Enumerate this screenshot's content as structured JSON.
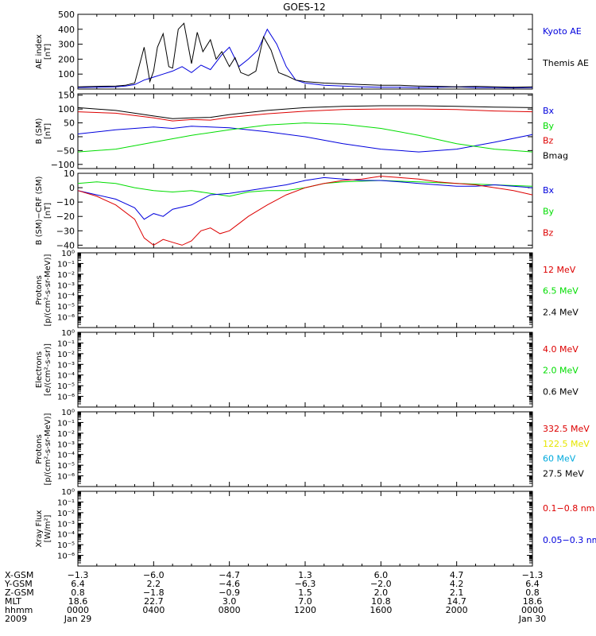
{
  "title": "GOES-12",
  "colors": {
    "black": "#000000",
    "blue": "#0000dd",
    "red": "#dd0000",
    "green": "#00dd00",
    "yellow": "#e6e600",
    "cyan": "#00aadd"
  },
  "chart_data": [
    {
      "type": "line",
      "id": "ae",
      "ylabel": [
        "AE index",
        "[nT]"
      ],
      "ylim": [
        0,
        500
      ],
      "yticks": [
        0,
        100,
        200,
        300,
        400,
        500
      ],
      "tick_labels": [
        "0",
        "100",
        "200",
        "300",
        "400",
        "500"
      ],
      "legend": [
        {
          "label": "Kyoto AE",
          "color": "blue"
        },
        {
          "label": "Themis AE",
          "color": "black"
        }
      ],
      "series": [
        {
          "name": "Kyoto AE",
          "color": "blue",
          "x": [
            0,
            1,
            2,
            2.5,
            3,
            3.5,
            4,
            4.5,
            5,
            5.5,
            6,
            6.5,
            7,
            7.3,
            7.6,
            8,
            8.5,
            9,
            9.5,
            10,
            10.5,
            11,
            11.5,
            12,
            13,
            14,
            15,
            16,
            17,
            18,
            19,
            20,
            21,
            22,
            23,
            24
          ],
          "y": [
            10,
            12,
            15,
            20,
            30,
            60,
            80,
            100,
            120,
            150,
            110,
            160,
            130,
            180,
            230,
            280,
            150,
            200,
            260,
            400,
            300,
            150,
            60,
            40,
            25,
            20,
            15,
            12,
            12,
            10,
            12,
            15,
            10,
            10,
            8,
            10
          ]
        },
        {
          "name": "Themis AE",
          "color": "black",
          "x": [
            0,
            1,
            2,
            2.5,
            3,
            3.5,
            3.8,
            4.0,
            4.2,
            4.5,
            4.8,
            5.0,
            5.3,
            5.6,
            6,
            6.3,
            6.6,
            7,
            7.3,
            7.6,
            8,
            8.3,
            8.6,
            9,
            9.4,
            9.8,
            10.2,
            10.6,
            11,
            11.5,
            12,
            13,
            14,
            15,
            16,
            17,
            18,
            19,
            20,
            21,
            22,
            23,
            24
          ],
          "y": [
            15,
            18,
            20,
            25,
            40,
            280,
            50,
            120,
            280,
            370,
            150,
            140,
            400,
            440,
            170,
            380,
            250,
            330,
            200,
            250,
            150,
            210,
            110,
            90,
            120,
            350,
            260,
            110,
            90,
            60,
            50,
            40,
            35,
            30,
            25,
            25,
            20,
            18,
            15,
            18,
            15,
            12,
            15
          ]
        }
      ]
    },
    {
      "type": "line",
      "id": "bsm",
      "ylabel": [
        "B (SM)",
        "[nT]"
      ],
      "ylim": [
        -115,
        155
      ],
      "yticks": [
        -100,
        -50,
        0,
        50,
        100,
        150
      ],
      "tick_labels": [
        "−100",
        "−50",
        "0",
        "50",
        "100",
        "150"
      ],
      "legend": [
        {
          "label": "Bx",
          "color": "blue"
        },
        {
          "label": "By",
          "color": "green"
        },
        {
          "label": "Bz",
          "color": "red"
        },
        {
          "label": "Bmag",
          "color": "black"
        }
      ],
      "series": [
        {
          "name": "Bmag",
          "color": "black",
          "x": [
            0,
            2,
            4,
            5,
            6,
            7,
            8,
            10,
            12,
            14,
            16,
            18,
            20,
            22,
            24
          ],
          "y": [
            105,
            95,
            75,
            65,
            68,
            70,
            80,
            95,
            105,
            110,
            112,
            112,
            110,
            107,
            105
          ]
        },
        {
          "name": "Bz",
          "color": "red",
          "x": [
            0,
            2,
            4,
            5,
            6,
            7,
            8,
            10,
            12,
            14,
            16,
            18,
            20,
            22,
            24
          ],
          "y": [
            90,
            85,
            68,
            57,
            62,
            60,
            70,
            83,
            92,
            98,
            100,
            100,
            98,
            93,
            90
          ]
        },
        {
          "name": "Bx",
          "color": "blue",
          "x": [
            0,
            2,
            4,
            5,
            6,
            7,
            8,
            10,
            12,
            14,
            16,
            18,
            20,
            22,
            24
          ],
          "y": [
            10,
            25,
            35,
            30,
            38,
            35,
            32,
            18,
            0,
            -25,
            -45,
            -55,
            -45,
            -20,
            8
          ]
        },
        {
          "name": "By",
          "color": "green",
          "x": [
            0,
            2,
            4,
            6,
            8,
            10,
            12,
            14,
            16,
            18,
            20,
            22,
            24
          ],
          "y": [
            -55,
            -45,
            -20,
            5,
            25,
            42,
            50,
            45,
            30,
            5,
            -25,
            -45,
            -55
          ]
        }
      ]
    },
    {
      "type": "line",
      "id": "bdiff",
      "ylabel": [
        "B (SM)−CRF (SM)",
        "[nT]"
      ],
      "ylim": [
        -42,
        10
      ],
      "yticks": [
        -40,
        -30,
        -20,
        -10,
        0,
        10
      ],
      "tick_labels": [
        "−40",
        "−30",
        "−20",
        "−10",
        "0",
        "10"
      ],
      "legend": [
        {
          "label": "Bx",
          "color": "blue"
        },
        {
          "label": "By",
          "color": "green"
        },
        {
          "label": "Bz",
          "color": "red"
        }
      ],
      "series": [
        {
          "name": "By",
          "color": "green",
          "x": [
            0,
            1,
            2,
            3,
            4,
            5,
            6,
            7,
            8,
            9,
            10,
            11,
            12,
            13,
            14,
            16,
            18,
            20,
            22,
            24
          ],
          "y": [
            3,
            4,
            3,
            0,
            -2,
            -3,
            -2,
            -4,
            -6,
            -3,
            -2,
            -2,
            0,
            3,
            4,
            5,
            4,
            3,
            2,
            1
          ]
        },
        {
          "name": "Bx",
          "color": "blue",
          "x": [
            0,
            1,
            2,
            3,
            3.5,
            4,
            4.5,
            5,
            6,
            7,
            8,
            9,
            10,
            11,
            12,
            13,
            14,
            15,
            16,
            17,
            18,
            19,
            20,
            21,
            22,
            23,
            24
          ],
          "y": [
            -2,
            -5,
            -8,
            -14,
            -22,
            -18,
            -20,
            -15,
            -12,
            -5,
            -4,
            -2,
            0,
            2,
            5,
            7,
            6,
            5,
            5,
            4,
            3,
            2,
            1,
            1,
            2,
            1,
            0
          ]
        },
        {
          "name": "Bz",
          "color": "red",
          "x": [
            0,
            1,
            2,
            3,
            3.5,
            4,
            4.5,
            5,
            5.5,
            6,
            6.5,
            7,
            7.5,
            8,
            8.5,
            9,
            10,
            11,
            12,
            13,
            14,
            15,
            16,
            17,
            18,
            19,
            20,
            21,
            22,
            23,
            24
          ],
          "y": [
            -2,
            -6,
            -12,
            -22,
            -35,
            -40,
            -36,
            -38,
            -40,
            -37,
            -30,
            -28,
            -32,
            -30,
            -25,
            -20,
            -12,
            -5,
            0,
            3,
            5,
            6,
            8,
            7,
            6,
            4,
            3,
            2,
            0,
            -2,
            -5
          ]
        }
      ]
    },
    {
      "type": "line",
      "id": "protons1",
      "ylabel": [
        "Protons",
        "[p/(cm²-s-sr-MeV)]"
      ],
      "log": true,
      "ylim": [
        -7,
        0
      ],
      "tick_labels": [
        "10⁰",
        "10⁻¹",
        "10⁻²",
        "10⁻³",
        "10⁻⁴",
        "10⁻⁵",
        "10⁻⁶"
      ],
      "legend": [
        {
          "label": "12 MeV",
          "color": "red"
        },
        {
          "label": "6.5 MeV",
          "color": "green"
        },
        {
          "label": "2.4 MeV",
          "color": "black"
        }
      ],
      "series": []
    },
    {
      "type": "line",
      "id": "electrons",
      "ylabel": [
        "Electrons",
        "[e/(cm²-s-sr)]"
      ],
      "log": true,
      "ylim": [
        -7,
        0
      ],
      "tick_labels": [
        "10⁰",
        "10⁻¹",
        "10⁻²",
        "10⁻³",
        "10⁻⁴",
        "10⁻⁵",
        "10⁻⁶"
      ],
      "legend": [
        {
          "label": "4.0 MeV",
          "color": "red"
        },
        {
          "label": "2.0 MeV",
          "color": "green"
        },
        {
          "label": "0.6 MeV",
          "color": "black"
        }
      ],
      "series": []
    },
    {
      "type": "line",
      "id": "protons2",
      "ylabel": [
        "Protons",
        "[p/(cm²-s-sr-MeV)]"
      ],
      "log": true,
      "ylim": [
        -7,
        0
      ],
      "tick_labels": [
        "10⁰",
        "10⁻¹",
        "10⁻²",
        "10⁻³",
        "10⁻⁴",
        "10⁻⁵",
        "10⁻⁶"
      ],
      "legend": [
        {
          "label": "332.5 MeV",
          "color": "red"
        },
        {
          "label": "122.5 MeV",
          "color": "yellow"
        },
        {
          "label": "60 MeV",
          "color": "cyan"
        },
        {
          "label": "27.5 MeV",
          "color": "black"
        }
      ],
      "series": []
    },
    {
      "type": "line",
      "id": "xray",
      "ylabel": [
        "Xray Flux",
        "[W/m²]"
      ],
      "log": true,
      "ylim": [
        -7,
        0
      ],
      "tick_labels": [
        "10⁰",
        "10⁻¹",
        "10⁻²",
        "10⁻³",
        "10⁻⁴",
        "10⁻⁵",
        "10⁻⁶"
      ],
      "legend": [
        {
          "label": "0.1−0.8 nm",
          "color": "red"
        },
        {
          "label": "0.05−0.3 nm",
          "color": "blue"
        }
      ],
      "series": []
    }
  ],
  "xaxis": {
    "row_labels": [
      "X-GSM",
      "Y-GSM",
      "Z-GSM",
      "MLT",
      "hhmm",
      "2009"
    ],
    "ticks": [
      {
        "x": 0,
        "vals": [
          "−1.3",
          "6.4",
          "0.8",
          "18.6",
          "0000",
          "Jan 29"
        ]
      },
      {
        "x": 4,
        "vals": [
          "−6.0",
          "2.2",
          "−1.8",
          "22.7",
          "0400",
          ""
        ]
      },
      {
        "x": 8,
        "vals": [
          "−4.7",
          "−4.6",
          "−0.9",
          "3.0",
          "0800",
          ""
        ]
      },
      {
        "x": 12,
        "vals": [
          "1.3",
          "−6.3",
          "1.5",
          "7.0",
          "1200",
          ""
        ]
      },
      {
        "x": 16,
        "vals": [
          "6.0",
          "−2.0",
          "2.0",
          "10.8",
          "1600",
          ""
        ]
      },
      {
        "x": 20,
        "vals": [
          "4.7",
          "4.2",
          "2.1",
          "14.7",
          "2000",
          ""
        ]
      },
      {
        "x": 24,
        "vals": [
          "−1.3",
          "6.4",
          "0.8",
          "18.6",
          "0000",
          "Jan 30"
        ]
      }
    ]
  }
}
